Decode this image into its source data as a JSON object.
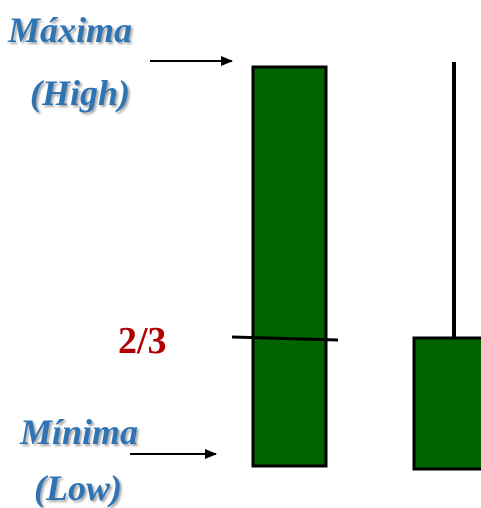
{
  "labels": {
    "high_es": "Máxima",
    "high_en": "(High)",
    "low_es": "Mínima",
    "low_en": "(Low)",
    "ratio": "2/3"
  },
  "colors": {
    "candle_fill": "#006400",
    "candle_stroke": "#000000",
    "label_blue": "#2e74b5",
    "label_red": "#b00000"
  }
}
